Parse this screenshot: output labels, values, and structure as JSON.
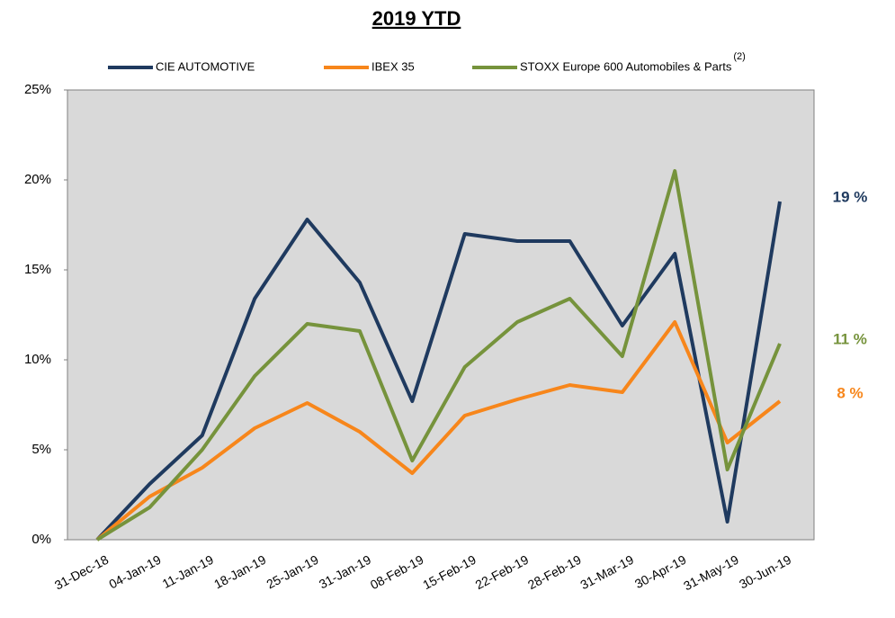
{
  "chart_data": {
    "type": "line",
    "title": "2019 YTD",
    "categories": [
      "31-Dec-18",
      "04-Jan-19",
      "11-Jan-19",
      "18-Jan-19",
      "25-Jan-19",
      "31-Jan-19",
      "08-Feb-19",
      "15-Feb-19",
      "22-Feb-19",
      "28-Feb-19",
      "31-Mar-19",
      "30-Apr-19",
      "31-May-19",
      "30-Jun-19"
    ],
    "series": [
      {
        "name": "CIE AUTOMOTIVE",
        "color": "#1f3a5f",
        "end_label": "19 %",
        "values": [
          0,
          3.1,
          5.8,
          13.4,
          17.8,
          14.3,
          7.7,
          17.0,
          16.6,
          16.6,
          11.9,
          15.9,
          1.0,
          18.8
        ]
      },
      {
        "name": "IBEX 35",
        "color": "#f7861b",
        "end_label": "8 %",
        "values": [
          0,
          2.4,
          4.0,
          6.2,
          7.6,
          6.0,
          3.7,
          6.9,
          7.8,
          8.6,
          8.2,
          12.1,
          5.4,
          7.7
        ]
      },
      {
        "name": "STOXX Europe 600 Automobiles & Parts",
        "color": "#76933c",
        "end_label": "11 %",
        "values": [
          0,
          1.8,
          5.0,
          9.1,
          12.0,
          11.6,
          4.4,
          9.6,
          12.1,
          13.4,
          10.2,
          20.5,
          3.9,
          10.9
        ]
      }
    ],
    "legend_note": "(2)",
    "ylim": [
      0,
      25
    ],
    "yticks": [
      {
        "value": 0,
        "label": "0%"
      },
      {
        "value": 5,
        "label": "5%"
      },
      {
        "value": 10,
        "label": "10%"
      },
      {
        "value": 15,
        "label": "15%"
      },
      {
        "value": 20,
        "label": "20%"
      },
      {
        "value": 25,
        "label": "25%"
      }
    ],
    "grid": false,
    "plot_background": "#d9d9d9"
  }
}
